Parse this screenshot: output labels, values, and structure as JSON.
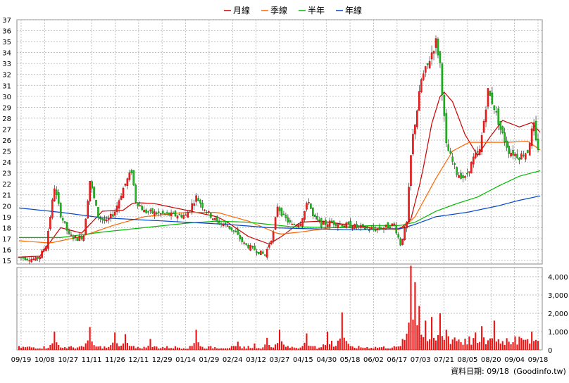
{
  "chart_data": {
    "type": "candlestick",
    "legend": {
      "placement": "top-center",
      "items": [
        {
          "name": "月線",
          "color": "#cc0000"
        },
        {
          "name": "季線",
          "color": "#ff6600"
        },
        {
          "name": "半年",
          "color": "#00bb00"
        },
        {
          "name": "年線",
          "color": "#0044cc"
        }
      ]
    },
    "price_axis": {
      "min": 15,
      "max": 37,
      "ticks": [
        15,
        16,
        17,
        18,
        19,
        20,
        21,
        22,
        23,
        24,
        25,
        26,
        27,
        28,
        29,
        30,
        31,
        32,
        33,
        34,
        35,
        36,
        37
      ],
      "position": "left"
    },
    "volume_axis": {
      "min": 0,
      "max": 4500,
      "ticks": [
        0,
        1000,
        2000,
        3000,
        4000
      ],
      "tick_labels": [
        "0",
        "1,000",
        "2,000",
        "3,000",
        "4,000"
      ],
      "position": "right"
    },
    "x_labels": [
      "09/19",
      "10/08",
      "10/27",
      "11/11",
      "11/26",
      "12/11",
      "12/29",
      "01/14",
      "01/29",
      "02/24",
      "03/12",
      "03/27",
      "04/15",
      "04/30",
      "05/18",
      "06/02",
      "06/17",
      "07/03",
      "07/21",
      "08/05",
      "08/20",
      "09/04",
      "09/18"
    ],
    "n_bars": 250,
    "price_path": [
      [
        0,
        15.3
      ],
      [
        8,
        15.1
      ],
      [
        10,
        15.4
      ],
      [
        13,
        16.4
      ],
      [
        17,
        21.7
      ],
      [
        20,
        19.2
      ],
      [
        24,
        17.3
      ],
      [
        28,
        17.0
      ],
      [
        31,
        17.3
      ],
      [
        34,
        22.3
      ],
      [
        38,
        19.0
      ],
      [
        42,
        18.5
      ],
      [
        46,
        19.5
      ],
      [
        50,
        21.6
      ],
      [
        54,
        23.2
      ],
      [
        56,
        20.5
      ],
      [
        60,
        19.5
      ],
      [
        70,
        19.2
      ],
      [
        80,
        19.1
      ],
      [
        85,
        20.8
      ],
      [
        90,
        19.5
      ],
      [
        95,
        18.5
      ],
      [
        100,
        18.2
      ],
      [
        104,
        17.5
      ],
      [
        108,
        16.5
      ],
      [
        113,
        16.0
      ],
      [
        118,
        15.5
      ],
      [
        120,
        16.5
      ],
      [
        122,
        17.5
      ],
      [
        124,
        20.0
      ],
      [
        127,
        19.0
      ],
      [
        131,
        18.2
      ],
      [
        135,
        18.5
      ],
      [
        139,
        20.5
      ],
      [
        141,
        19.0
      ],
      [
        145,
        18.3
      ],
      [
        150,
        18.5
      ],
      [
        158,
        18.2
      ],
      [
        165,
        18.0
      ],
      [
        170,
        17.8
      ],
      [
        175,
        18.0
      ],
      [
        180,
        18.3
      ],
      [
        183,
        16.5
      ],
      [
        186,
        18.4
      ],
      [
        188,
        24.5
      ],
      [
        189,
        26.4
      ],
      [
        191,
        28.8
      ],
      [
        193,
        31.5
      ],
      [
        196,
        32.8
      ],
      [
        198,
        34.0
      ],
      [
        200,
        35.0
      ],
      [
        202,
        33.0
      ],
      [
        205,
        25.5
      ],
      [
        210,
        23.0
      ],
      [
        214,
        22.5
      ],
      [
        218,
        24.3
      ],
      [
        221,
        25.0
      ],
      [
        225,
        30.5
      ],
      [
        228,
        29.0
      ],
      [
        231,
        27.0
      ],
      [
        235,
        25.0
      ],
      [
        240,
        24.5
      ],
      [
        244,
        25.0
      ],
      [
        246,
        26.8
      ],
      [
        247,
        27.3
      ],
      [
        248,
        25.8
      ],
      [
        250,
        24.8
      ]
    ],
    "ma": {
      "月線": [
        [
          0,
          15.3
        ],
        [
          10,
          15.4
        ],
        [
          20,
          18.0
        ],
        [
          30,
          17.5
        ],
        [
          40,
          19.5
        ],
        [
          50,
          19.6
        ],
        [
          55,
          20.3
        ],
        [
          65,
          20.2
        ],
        [
          80,
          19.6
        ],
        [
          95,
          19.0
        ],
        [
          100,
          18.5
        ],
        [
          110,
          17.2
        ],
        [
          120,
          16.5
        ],
        [
          126,
          17.2
        ],
        [
          135,
          18.5
        ],
        [
          145,
          18.6
        ],
        [
          160,
          18.2
        ],
        [
          175,
          17.9
        ],
        [
          183,
          17.9
        ],
        [
          188,
          18.8
        ],
        [
          193,
          22.5
        ],
        [
          198,
          27.5
        ],
        [
          203,
          30.6
        ],
        [
          208,
          29.5
        ],
        [
          214,
          26.5
        ],
        [
          220,
          24.6
        ],
        [
          226,
          26.3
        ],
        [
          232,
          27.8
        ],
        [
          240,
          27.2
        ],
        [
          246,
          27.6
        ],
        [
          250,
          26.7
        ]
      ],
      "季線": [
        [
          0,
          16.8
        ],
        [
          15,
          16.6
        ],
        [
          30,
          17.2
        ],
        [
          45,
          18.2
        ],
        [
          60,
          19.0
        ],
        [
          80,
          19.4
        ],
        [
          95,
          19.4
        ],
        [
          110,
          18.6
        ],
        [
          125,
          17.4
        ],
        [
          135,
          17.6
        ],
        [
          150,
          18.0
        ],
        [
          170,
          18.0
        ],
        [
          183,
          17.8
        ],
        [
          190,
          19.0
        ],
        [
          200,
          22.5
        ],
        [
          208,
          25.0
        ],
        [
          216,
          25.8
        ],
        [
          225,
          25.8
        ],
        [
          235,
          25.8
        ],
        [
          244,
          25.9
        ],
        [
          250,
          25.1
        ]
      ],
      "半年": [
        [
          0,
          17.1
        ],
        [
          20,
          17.1
        ],
        [
          40,
          17.6
        ],
        [
          60,
          18.0
        ],
        [
          80,
          18.4
        ],
        [
          95,
          18.6
        ],
        [
          110,
          18.5
        ],
        [
          130,
          18.1
        ],
        [
          150,
          18.0
        ],
        [
          170,
          18.2
        ],
        [
          183,
          18.2
        ],
        [
          190,
          18.5
        ],
        [
          200,
          19.5
        ],
        [
          210,
          20.2
        ],
        [
          220,
          20.8
        ],
        [
          230,
          21.8
        ],
        [
          240,
          22.7
        ],
        [
          250,
          23.2
        ]
      ],
      "年線": [
        [
          0,
          19.8
        ],
        [
          20,
          19.4
        ],
        [
          40,
          18.9
        ],
        [
          60,
          18.7
        ],
        [
          80,
          18.5
        ],
        [
          100,
          18.3
        ],
        [
          120,
          18.0
        ],
        [
          140,
          17.9
        ],
        [
          160,
          17.8
        ],
        [
          183,
          17.9
        ],
        [
          190,
          18.3
        ],
        [
          200,
          19.0
        ],
        [
          215,
          19.4
        ],
        [
          230,
          20.0
        ],
        [
          240,
          20.5
        ],
        [
          250,
          20.9
        ]
      ]
    },
    "volume_bursts": [
      [
        17,
        1000
      ],
      [
        34,
        1250
      ],
      [
        46,
        950
      ],
      [
        51,
        860
      ],
      [
        63,
        600
      ],
      [
        85,
        1100
      ],
      [
        105,
        450
      ],
      [
        113,
        350
      ],
      [
        119,
        660
      ],
      [
        125,
        1100
      ],
      [
        138,
        900
      ],
      [
        148,
        1000
      ],
      [
        150,
        500
      ],
      [
        155,
        2050
      ],
      [
        184,
        600
      ],
      [
        188,
        4600
      ],
      [
        190,
        3700
      ],
      [
        192,
        2400
      ],
      [
        195,
        1600
      ],
      [
        198,
        1800
      ],
      [
        202,
        2000
      ],
      [
        205,
        1100
      ],
      [
        209,
        680
      ],
      [
        219,
        950
      ],
      [
        222,
        1300
      ],
      [
        228,
        1600
      ],
      [
        234,
        640
      ],
      [
        246,
        1000
      ],
      [
        248,
        500
      ]
    ]
  },
  "footer": {
    "date_label": "資料日期: 09/18",
    "source": "(Goodinfo.tw)"
  }
}
